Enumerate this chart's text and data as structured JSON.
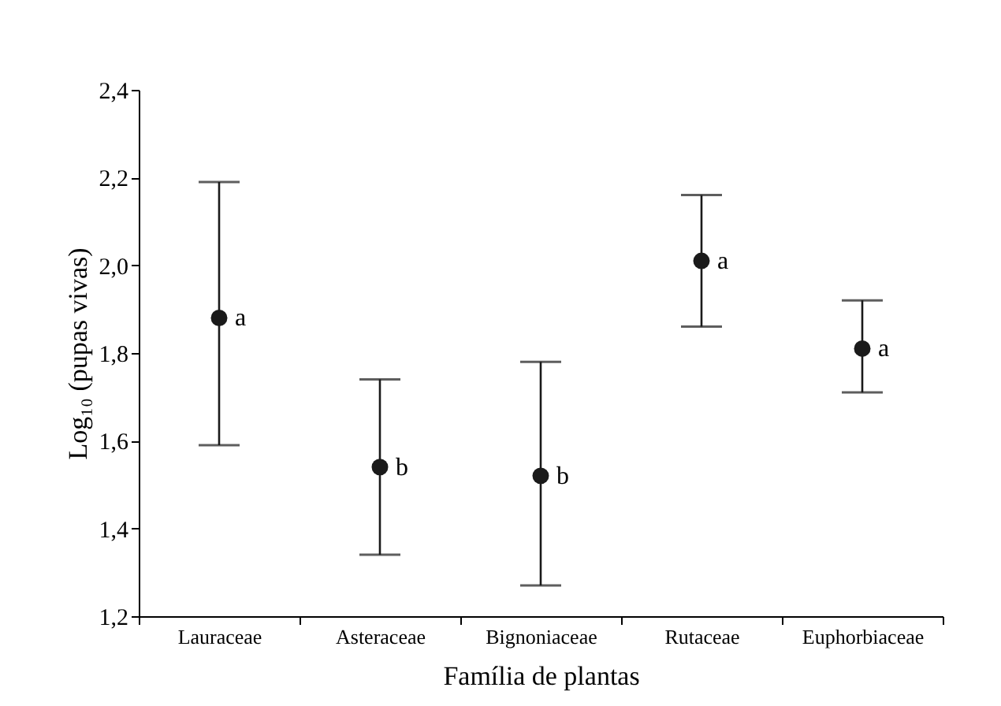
{
  "chart_data": {
    "type": "scatter",
    "xlabel": "Família de plantas",
    "ylabel": "Log₁₀ (pupas vivas)",
    "categories": [
      "Lauraceae",
      "Asteraceae",
      "Bignoniaceae",
      "Rutaceae",
      "Euphorbiaceae"
    ],
    "series": [
      {
        "color": "#1a1a1a",
        "values": [
          1.88,
          1.54,
          1.52,
          2.01,
          1.81
        ],
        "errors": [
          [
            1.59,
            2.19
          ],
          [
            1.34,
            1.74
          ],
          [
            1.27,
            1.78
          ],
          [
            1.86,
            2.16
          ],
          [
            1.71,
            1.92
          ]
        ]
      }
    ],
    "ylim": [
      1.2,
      2.4
    ],
    "yticks": [
      {
        "value": 1.2,
        "label": "1,2"
      },
      {
        "value": 1.4,
        "label": "1,4"
      },
      {
        "value": 1.6,
        "label": "1,6"
      },
      {
        "value": 1.8,
        "label": "1,8"
      },
      {
        "value": 2.0,
        "label": "2,0"
      },
      {
        "value": 2.2,
        "label": "2,2"
      },
      {
        "value": 2.4,
        "label": "2,4"
      }
    ],
    "annotations": [
      {
        "text": "a",
        "x": "Lauraceae",
        "y": 1.88
      },
      {
        "text": "b",
        "x": "Asteraceae",
        "y": 1.54
      },
      {
        "text": "b",
        "x": "Bignoniaceae",
        "y": 1.52
      },
      {
        "text": "a",
        "x": "Rutaceae",
        "y": 2.01
      },
      {
        "text": "a",
        "x": "Euphorbiaceae",
        "y": 1.81
      }
    ],
    "marker": "circle",
    "grid": false
  }
}
